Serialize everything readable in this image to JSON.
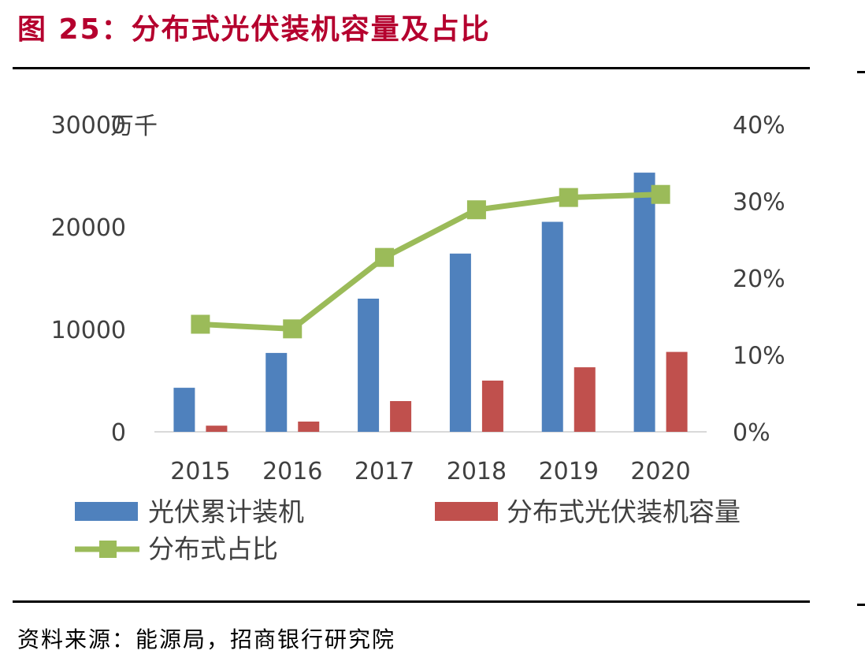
{
  "header": {
    "figure_title": "图 25：分布式光伏装机容量及占比",
    "source": "资料来源：能源局，招商银行研究院"
  },
  "chart_data": {
    "type": "bar",
    "title": "图 25：分布式光伏装机容量及占比",
    "categories": [
      "2015",
      "2016",
      "2017",
      "2018",
      "2019",
      "2020"
    ],
    "y_unit_label": "万千",
    "ylim": [
      0,
      30000
    ],
    "yticks": [
      "0",
      "10000",
      "20000",
      "30000"
    ],
    "y2lim": [
      0,
      0.4
    ],
    "y2ticks": [
      "0%",
      "10%",
      "20%",
      "30%",
      "40%"
    ],
    "series": [
      {
        "name": "光伏累计装机",
        "type": "bar",
        "axis": "left",
        "color": "#4f81bd",
        "values": [
          4300,
          7700,
          13000,
          17400,
          20500,
          25300
        ]
      },
      {
        "name": "分布式光伏装机容量",
        "type": "bar",
        "axis": "left",
        "color": "#c0504d",
        "values": [
          600,
          1000,
          3000,
          5000,
          6300,
          7800
        ]
      },
      {
        "name": "分布式占比",
        "type": "line",
        "axis": "right",
        "color": "#9bbb59",
        "values": [
          0.14,
          0.134,
          0.227,
          0.289,
          0.305,
          0.309
        ]
      }
    ],
    "grid": false,
    "legend_position": "bottom"
  }
}
